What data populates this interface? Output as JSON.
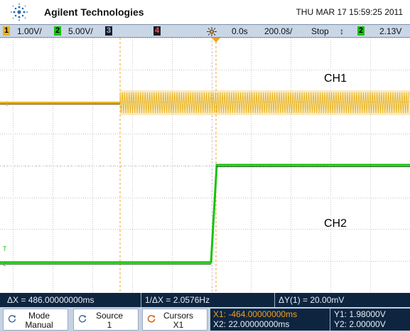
{
  "header": {
    "brand": "Agilent Technologies",
    "datetime": "THU MAR 17 15:59:25 2011"
  },
  "status": {
    "ch1_num": "1",
    "ch1_scale": "1.00V/",
    "ch2_num": "2",
    "ch2_scale": "5.00V/",
    "ch3_num": "3",
    "ch4_num": "4",
    "delay": "0.0s",
    "timebase": "200.0š/",
    "run_state": "Stop",
    "trigger_symbol": "↕",
    "trigger_source": "2",
    "trigger_level": "2.13V"
  },
  "display": {
    "label_ch1": "CH1",
    "label_ch2": "CH2",
    "marker_ch1": "1",
    "marker_ch2": "2",
    "marker_t": "T"
  },
  "readout": {
    "delta_x": "ΔX = 486.00000000ms",
    "inv_delta_x": "1/ΔX = 2.0576Hz",
    "delta_y": "ΔY(1) = 20.00mV"
  },
  "softkeys": {
    "mode_label": "Mode",
    "mode_value": "Manual",
    "source_label": "Source",
    "source_value": "1",
    "cursors_label": "Cursors",
    "cursors_value": "X1",
    "x1": "X1: -464.00000000ms",
    "x2": "X2: 22.00000000ms",
    "y1": "Y1: 1.98000V",
    "y2": "Y2: 2.00000V"
  },
  "colors": {
    "ch1": "#e8b21c",
    "ch2": "#19c20f",
    "cursor": "#f4a020",
    "grid": "#b8b8b8",
    "readout_bg": "#0e2540",
    "status_bg": "#c9d6e6"
  }
}
